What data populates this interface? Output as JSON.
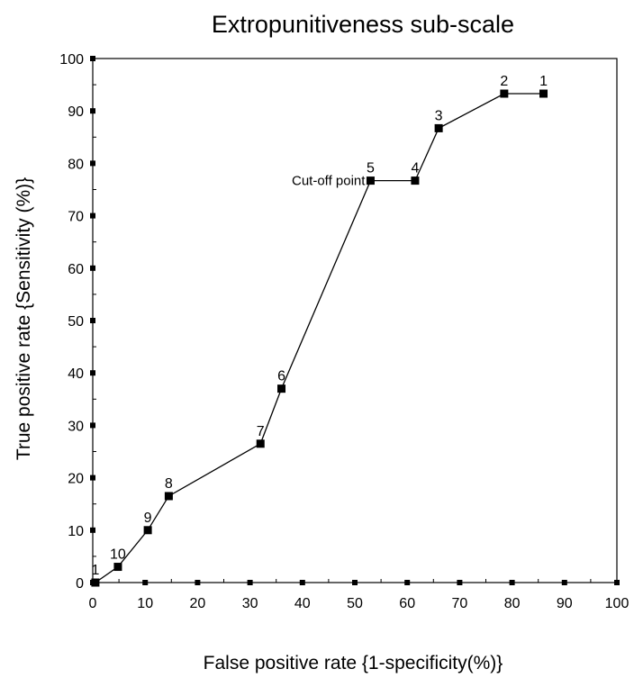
{
  "chart_data": {
    "type": "line",
    "title": "Extropunitiveness sub-scale",
    "xlabel": "False positive rate {1-specificity(%)}",
    "ylabel": "True positive rate {Sensitivity (%)}",
    "xlim": [
      0,
      100
    ],
    "ylim": [
      0,
      100
    ],
    "x_ticks": [
      0,
      10,
      20,
      30,
      40,
      50,
      60,
      70,
      80,
      90,
      100
    ],
    "y_ticks": [
      0,
      10,
      20,
      30,
      40,
      50,
      60,
      70,
      80,
      90,
      100
    ],
    "grid": false,
    "series": [
      {
        "points": [
          {
            "x": 0.5,
            "y": 0,
            "label": "1"
          },
          {
            "x": 4.8,
            "y": 3,
            "label": "10"
          },
          {
            "x": 10.5,
            "y": 10,
            "label": "9"
          },
          {
            "x": 14.5,
            "y": 16.5,
            "label": "8"
          },
          {
            "x": 32,
            "y": 26.5,
            "label": "7"
          },
          {
            "x": 36,
            "y": 37,
            "label": "6"
          },
          {
            "x": 53,
            "y": 76.7,
            "label": "5"
          },
          {
            "x": 61.5,
            "y": 76.7,
            "label": "4"
          },
          {
            "x": 66,
            "y": 86.7,
            "label": "3"
          },
          {
            "x": 78.5,
            "y": 93.3,
            "label": "2"
          },
          {
            "x": 86,
            "y": 93.3,
            "label": "1"
          }
        ]
      }
    ],
    "annotations": [
      {
        "text": "Cut-off point",
        "x": 53,
        "y": 76.7
      }
    ]
  }
}
